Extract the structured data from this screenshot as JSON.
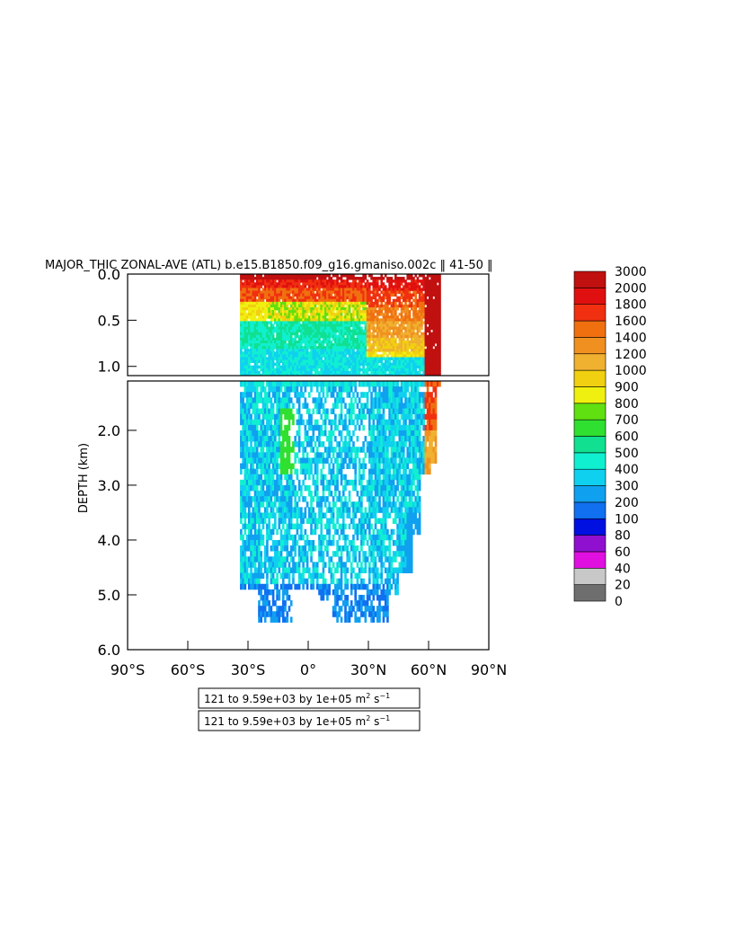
{
  "chart_data": {
    "type": "heatmap",
    "title": "MAJOR_THIC ZONAL-AVE (ATL) b.e15.B1850.f09_g16.gmaniso.002c ‖ 41-50 ‖",
    "ylabel": "DEPTH (km)",
    "xlabel": "",
    "x_range": [
      -90,
      90
    ],
    "x_ticks": [
      {
        "value": -90,
        "label": "90°S"
      },
      {
        "value": -60,
        "label": "60°S"
      },
      {
        "value": -30,
        "label": "30°S"
      },
      {
        "value": 0,
        "label": "0°"
      },
      {
        "value": 30,
        "label": "30°N"
      },
      {
        "value": 60,
        "label": "60°N"
      },
      {
        "value": 90,
        "label": "90°N"
      }
    ],
    "top_panel": {
      "y_range": [
        0.0,
        1.1
      ],
      "y_ticks": [
        {
          "value": 0.0,
          "label": "0.0"
        },
        {
          "value": 0.5,
          "label": "0.5"
        },
        {
          "value": 1.0,
          "label": "1.0"
        }
      ]
    },
    "bottom_panel": {
      "y_range": [
        1.1,
        6.0
      ],
      "y_ticks": [
        {
          "value": 2.0,
          "label": "2.0"
        },
        {
          "value": 3.0,
          "label": "3.0"
        },
        {
          "value": 4.0,
          "label": "4.0"
        },
        {
          "value": 5.0,
          "label": "5.0"
        },
        {
          "value": 6.0,
          "label": "6.0"
        }
      ]
    },
    "colorbar": {
      "levels": [
        "0",
        "20",
        "40",
        "60",
        "80",
        "100",
        "200",
        "300",
        "400",
        "500",
        "600",
        "700",
        "800",
        "900",
        "1000",
        "1200",
        "1400",
        "1600",
        "1800",
        "2000",
        "3000"
      ],
      "colors": [
        "#6e6e6e",
        "#c8c8c8",
        "#e010e0",
        "#9010d0",
        "#0010e0",
        "#1070f0",
        "#10a0f0",
        "#10d0f0",
        "#10f0d0",
        "#10e090",
        "#30e030",
        "#60e010",
        "#f0f010",
        "#f0d010",
        "#f0b030",
        "#f09020",
        "#f07010",
        "#f03010",
        "#e01010",
        "#c01010"
      ],
      "position": "right"
    },
    "contour_info": [
      "121 to 9.59e+03 by 1e+05 m",
      "121 to 9.59e+03 by 1e+05 m"
    ],
    "unit_exponent_m": "2",
    "unit_s": " s",
    "unit_exponent_s": "−1",
    "data_extent": {
      "lat_min": -34,
      "lat_max": 66,
      "max_depth_km": 5.4
    }
  }
}
